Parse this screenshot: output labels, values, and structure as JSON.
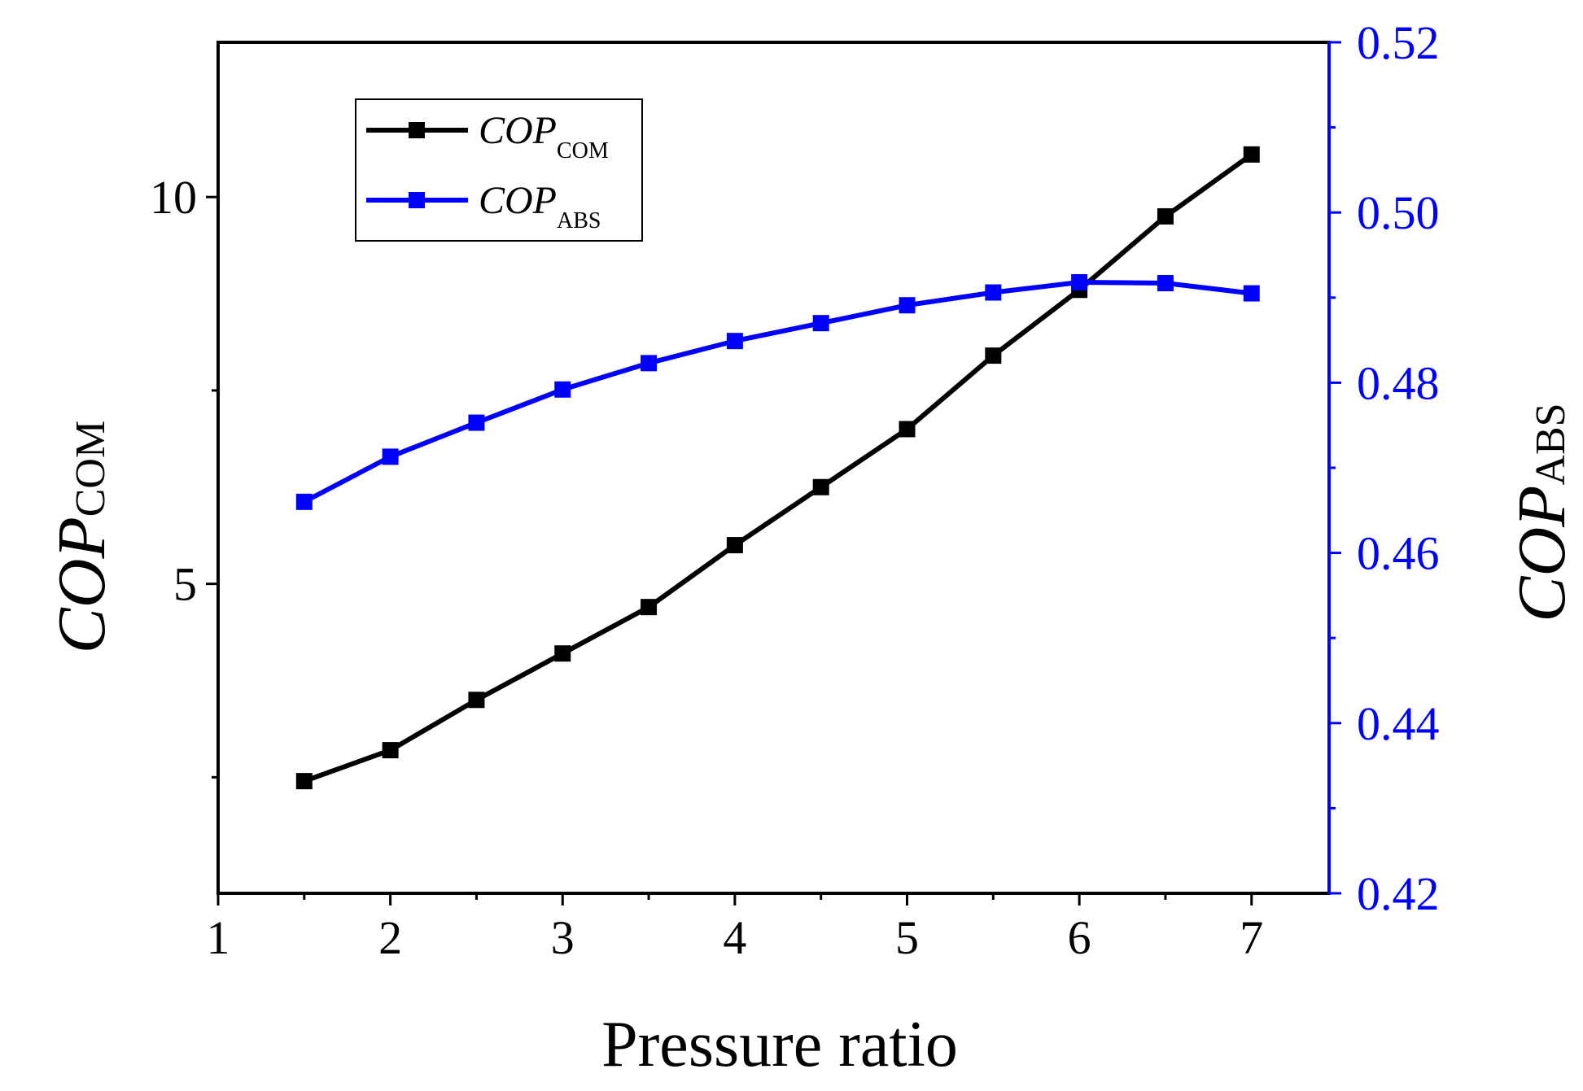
{
  "chart_data": {
    "type": "line",
    "title": "",
    "xlabel": "Pressure ratio",
    "xlim": [
      1,
      7.45
    ],
    "xticks": [
      1,
      2,
      3,
      4,
      5,
      6,
      7
    ],
    "x": [
      1.5,
      2,
      2.5,
      3,
      3.5,
      4,
      4.5,
      5,
      5.5,
      6,
      6.5,
      7
    ],
    "left_axis": {
      "label_main": "COP",
      "label_sub": "COM",
      "ylim": [
        1,
        12
      ],
      "ticks": [
        5,
        10
      ],
      "minor_ticks": [
        2.5,
        7.5
      ],
      "color": "#000000"
    },
    "right_axis": {
      "label_main": "COP",
      "label_sub": "ABS",
      "ylim": [
        0.42,
        0.52
      ],
      "ticks": [
        0.42,
        0.44,
        0.46,
        0.48,
        0.5,
        0.52
      ],
      "tick_labels": [
        "0.42",
        "0.44",
        "0.46",
        "0.48",
        "0.50",
        "0.52"
      ],
      "minor_ticks": [
        0.43,
        0.45,
        0.47,
        0.49,
        0.51
      ],
      "color": "#0000ff"
    },
    "series": [
      {
        "name_main": "COP",
        "name_sub": "COM",
        "axis": "left",
        "color": "#000000",
        "values": [
          2.45,
          2.85,
          3.5,
          4.1,
          4.7,
          5.5,
          6.25,
          7.0,
          7.95,
          8.8,
          9.75,
          10.55
        ]
      },
      {
        "name_main": "COP",
        "name_sub": "ABS",
        "axis": "right",
        "color": "#0000ff",
        "values": [
          0.466,
          0.4713,
          0.4753,
          0.4792,
          0.4823,
          0.4849,
          0.487,
          0.4891,
          0.4906,
          0.4918,
          0.4917,
          0.4905
        ]
      }
    ],
    "legend_position": "top-left"
  }
}
